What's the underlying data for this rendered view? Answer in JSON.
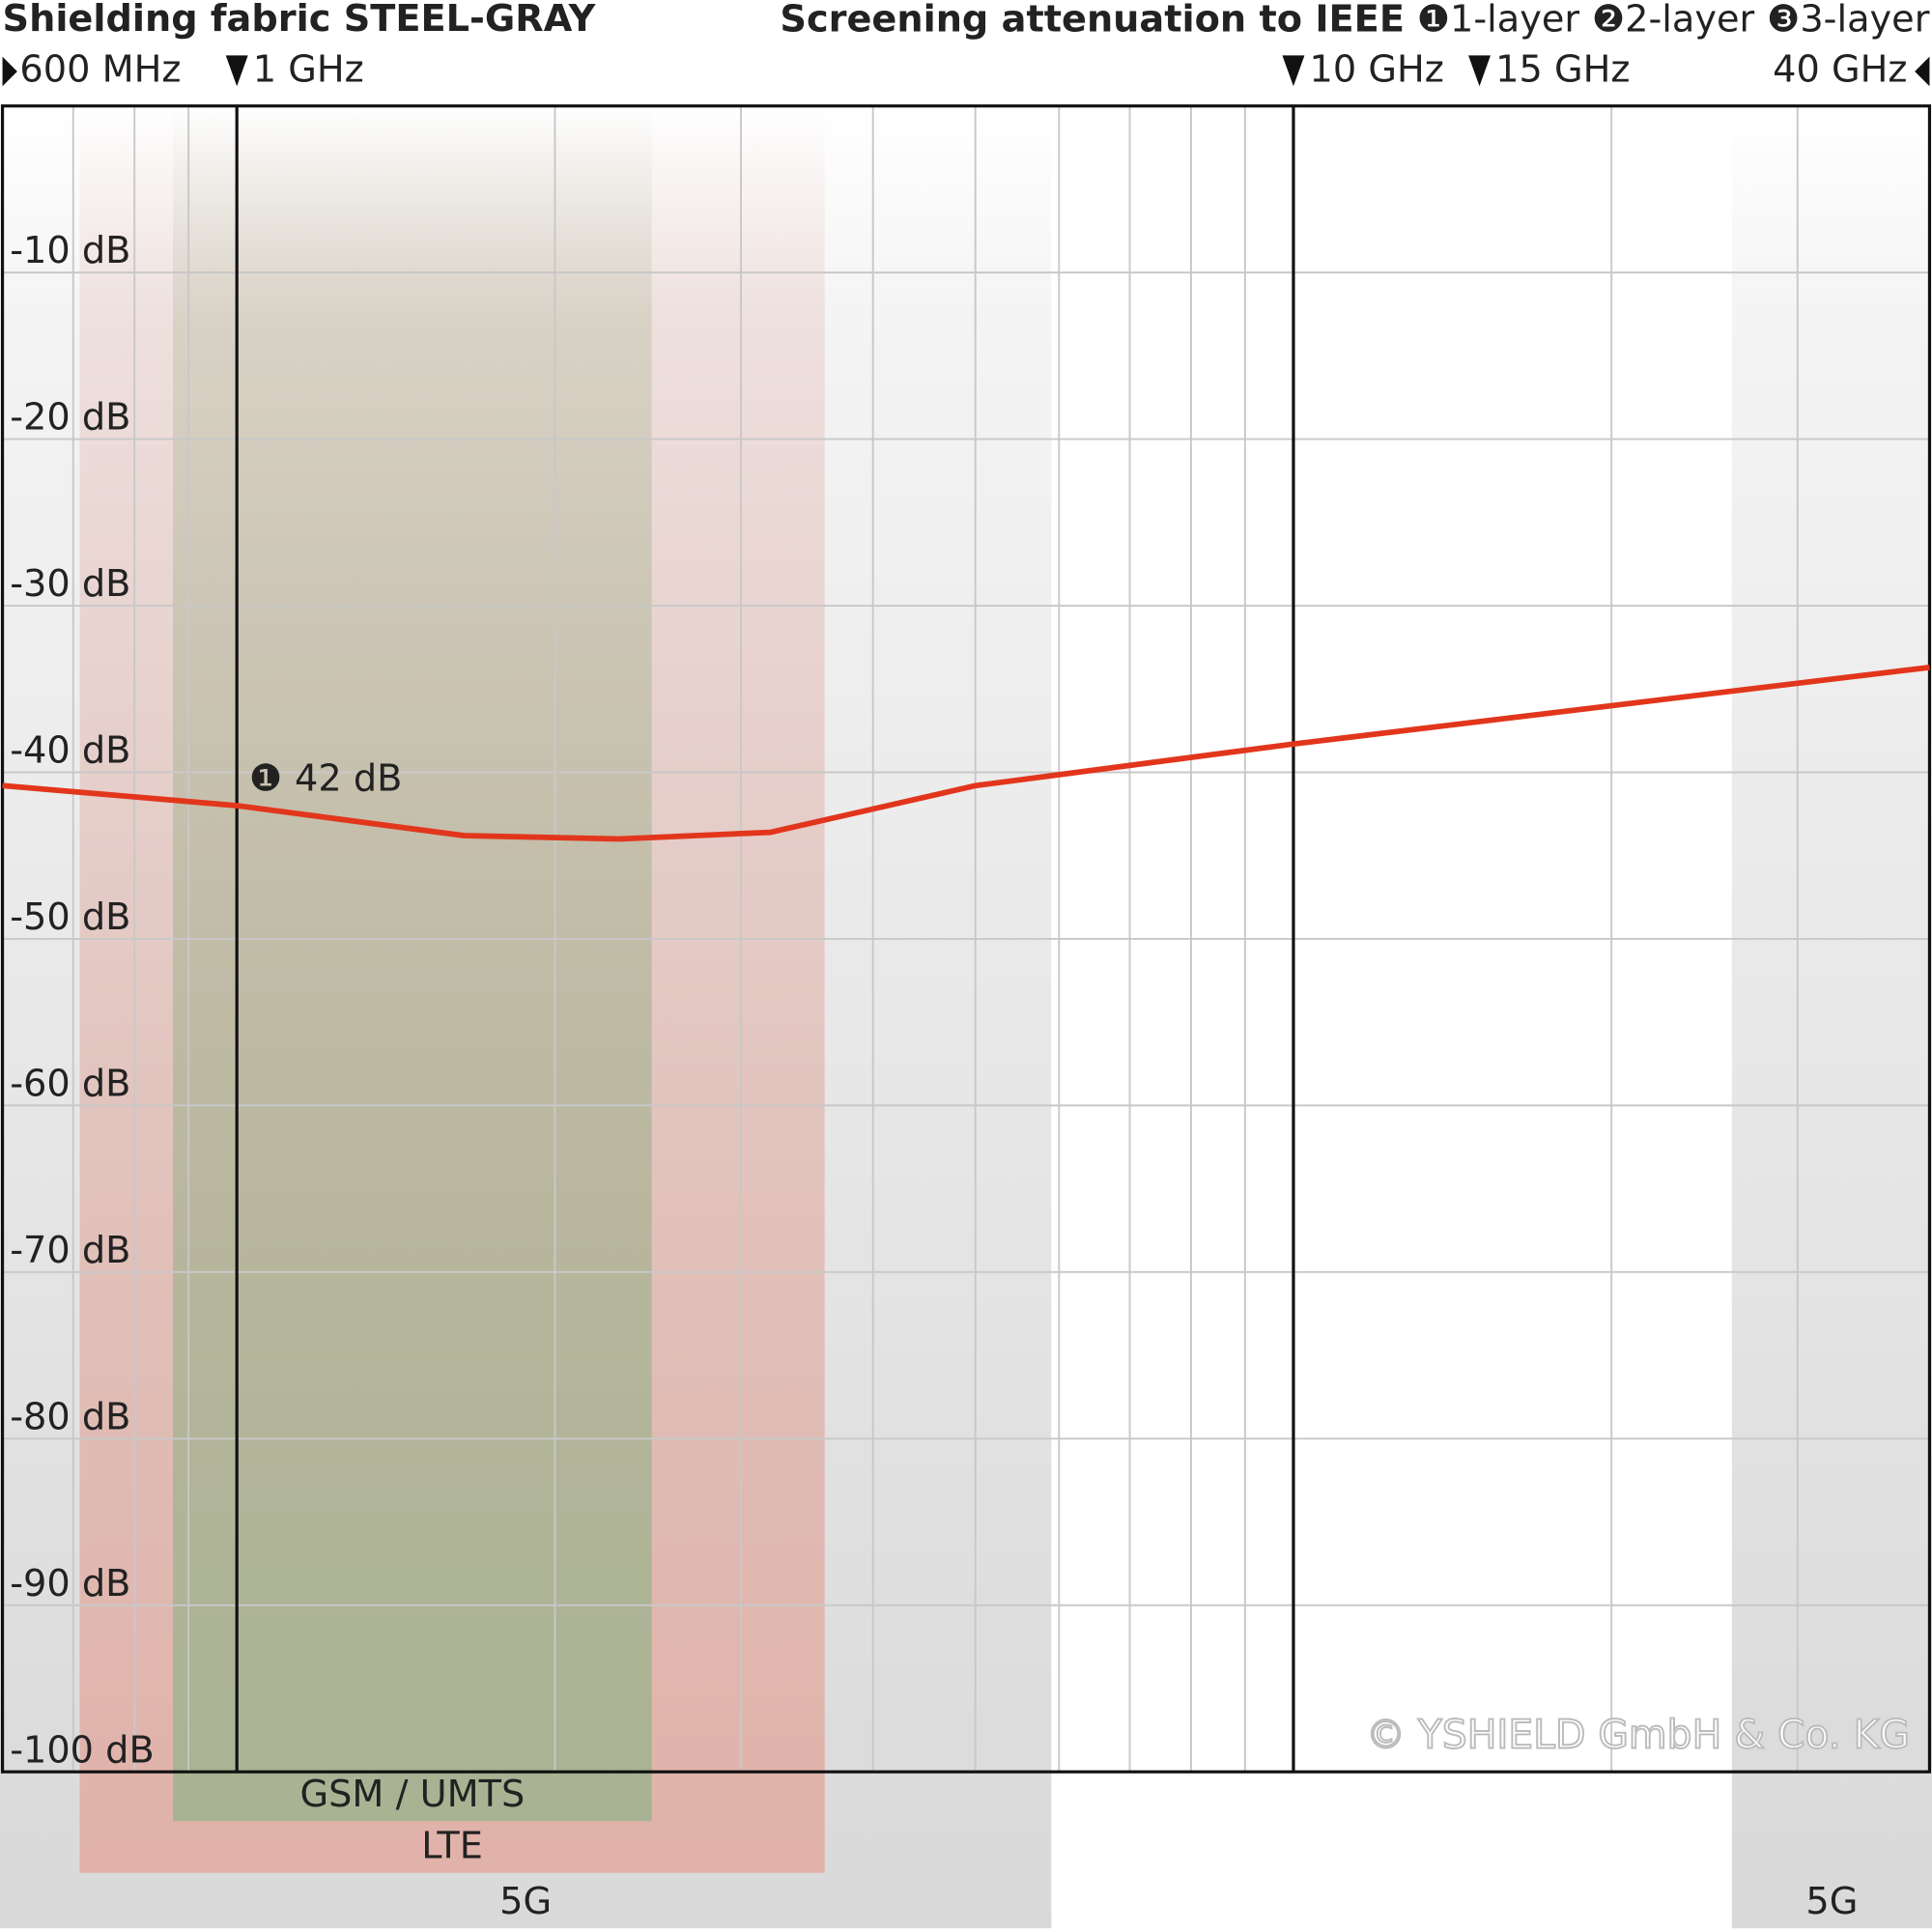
{
  "chart_data": {
    "type": "line",
    "title": "Shielding fabric STEEL-GRAY",
    "subtitle": "Screening attenuation to IEEE",
    "legend_markers": [
      "❶",
      "❷",
      "❸"
    ],
    "other_layers": [
      "2-layer",
      "3-layer"
    ],
    "x": [
      0.6,
      1,
      1.64,
      2.3,
      3.2,
      5,
      10,
      40
    ],
    "series": [
      {
        "name": "1-layer",
        "color": "#e2361c",
        "values": [
          -40.8,
          -42,
          -43.8,
          -44,
          -43.6,
          -40.8,
          -38.3,
          -33.7
        ]
      }
    ],
    "xscale": "log",
    "xlim": [
      0.6,
      40
    ],
    "xticks": [
      {
        "value": 0.6,
        "label": "600 MHz"
      },
      {
        "value": 1,
        "label": "1 GHz"
      },
      {
        "value": 10,
        "label": "10 GHz"
      },
      {
        "value": 15,
        "label": "15 GHz"
      },
      {
        "value": 40,
        "label": "40 GHz"
      }
    ],
    "xminor": [
      0.7,
      0.8,
      0.9,
      2,
      3,
      4,
      5,
      6,
      7,
      8,
      9,
      20,
      30
    ],
    "xmajor": [
      1,
      10
    ],
    "ylim": [
      -100,
      0
    ],
    "yticks": [
      {
        "value": -10,
        "label": "-10 dB"
      },
      {
        "value": -20,
        "label": "-20 dB"
      },
      {
        "value": -30,
        "label": "-30 dB"
      },
      {
        "value": -40,
        "label": "-40 dB"
      },
      {
        "value": -50,
        "label": "-50 dB"
      },
      {
        "value": -60,
        "label": "-60 dB"
      },
      {
        "value": -70,
        "label": "-70 dB"
      },
      {
        "value": -80,
        "label": "-80 dB"
      },
      {
        "value": -90,
        "label": "-90 dB"
      },
      {
        "value": -100,
        "label": "-100 dB"
      }
    ],
    "grid": true,
    "bands": [
      {
        "label": "5G",
        "range": [
          0.6,
          5.9
        ],
        "color": "#d9d9d9"
      },
      {
        "label": "LTE",
        "range": [
          0.71,
          3.6
        ],
        "color": "#e0b2a9"
      },
      {
        "label": "GSM / UMTS",
        "range": [
          0.87,
          2.47
        ],
        "color": "#a8b393"
      },
      {
        "label": "5G",
        "range": [
          26,
          40
        ],
        "color": "#d9d9d9"
      }
    ],
    "annotation": {
      "text": "42 dB",
      "x": 1
    },
    "copyright": "© YSHIELD GmbH & Co. KG"
  }
}
